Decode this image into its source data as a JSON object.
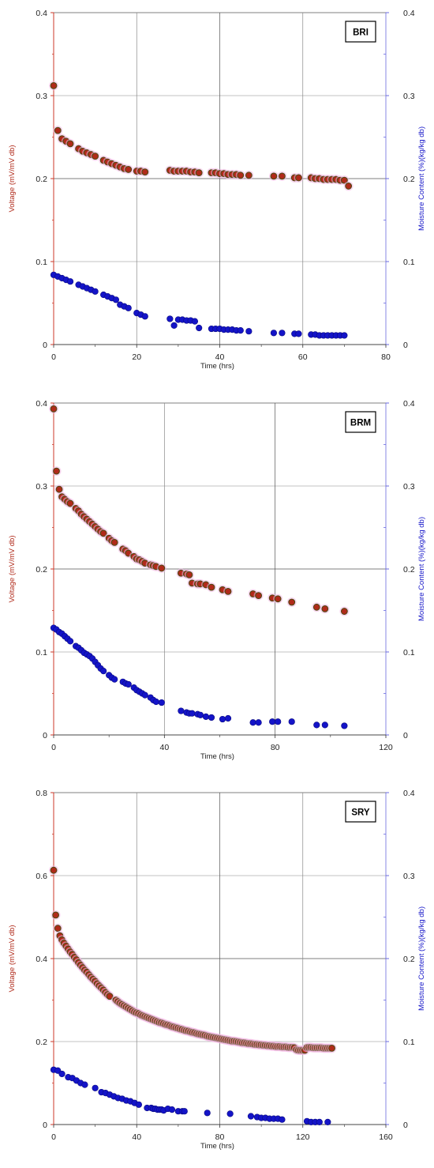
{
  "chart_data": [
    {
      "type": "scatter",
      "panel_label": "BRI",
      "xlabel": "Time (hrs)",
      "ylabel_left": "Voltage (mV/mV db)",
      "ylabel_right": "Moisture Content (%)(kg/kg db)",
      "xlim": [
        0,
        80
      ],
      "x_ticks": [
        "0",
        "20",
        "40",
        "60",
        "80"
      ],
      "ylim_left": [
        0,
        0.4
      ],
      "y_ticks_left": [
        "0",
        "0.1",
        "0.2",
        "0.3",
        "0.4"
      ],
      "ylim_right": [
        0,
        0.4
      ],
      "y_ticks_right": [
        "0",
        "0.1",
        "0.2",
        "0.3",
        "0.4"
      ],
      "grid": true,
      "series": [
        {
          "axis": "left",
          "color": "#b02a1a",
          "x": [
            0,
            1,
            2,
            3,
            4,
            6,
            7,
            8,
            9,
            10,
            12,
            13,
            14,
            15,
            16,
            17,
            18,
            20,
            21,
            22,
            28,
            29,
            30,
            31,
            32,
            33,
            34,
            35,
            38,
            39,
            40,
            41,
            42,
            43,
            44,
            45,
            47,
            53,
            55,
            58,
            59,
            62,
            63,
            64,
            65,
            66,
            67,
            68,
            69,
            70,
            71
          ],
          "y": [
            0.312,
            0.258,
            0.248,
            0.245,
            0.242,
            0.236,
            0.233,
            0.231,
            0.229,
            0.227,
            0.222,
            0.22,
            0.218,
            0.216,
            0.214,
            0.212,
            0.211,
            0.209,
            0.209,
            0.208,
            0.21,
            0.209,
            0.209,
            0.209,
            0.209,
            0.208,
            0.208,
            0.207,
            0.207,
            0.207,
            0.206,
            0.206,
            0.205,
            0.205,
            0.205,
            0.204,
            0.204,
            0.203,
            0.203,
            0.201,
            0.201,
            0.201,
            0.2,
            0.2,
            0.199,
            0.199,
            0.199,
            0.199,
            0.198,
            0.198,
            0.191
          ]
        },
        {
          "axis": "right",
          "color": "#1414c8",
          "x": [
            0,
            1,
            2,
            3,
            4,
            6,
            7,
            8,
            9,
            10,
            12,
            13,
            14,
            15,
            16,
            17,
            18,
            20,
            21,
            22,
            28,
            29,
            30,
            31,
            32,
            33,
            34,
            35,
            38,
            39,
            40,
            41,
            42,
            43,
            44,
            45,
            47,
            53,
            55,
            58,
            59,
            62,
            63,
            64,
            65,
            66,
            67,
            68,
            69,
            70
          ],
          "y": [
            0.084,
            0.082,
            0.08,
            0.078,
            0.076,
            0.072,
            0.07,
            0.068,
            0.066,
            0.064,
            0.06,
            0.058,
            0.056,
            0.054,
            0.048,
            0.046,
            0.044,
            0.038,
            0.036,
            0.034,
            0.031,
            0.023,
            0.03,
            0.03,
            0.029,
            0.029,
            0.028,
            0.02,
            0.019,
            0.019,
            0.019,
            0.018,
            0.018,
            0.018,
            0.017,
            0.017,
            0.016,
            0.014,
            0.014,
            0.013,
            0.013,
            0.012,
            0.012,
            0.011,
            0.011,
            0.011,
            0.011,
            0.011,
            0.011,
            0.011
          ]
        }
      ]
    },
    {
      "type": "scatter",
      "panel_label": "BRM",
      "xlabel": "Time (hrs)",
      "ylabel_left": "Voltage (mV/mV db)",
      "ylabel_right": "Moisture Content (%)(kg/kg db)",
      "xlim": [
        0,
        120
      ],
      "x_ticks": [
        "0",
        "40",
        "80",
        "120"
      ],
      "ylim_left": [
        0,
        0.4
      ],
      "y_ticks_left": [
        "0",
        "0.1",
        "0.2",
        "0.3",
        "0.4"
      ],
      "ylim_right": [
        0,
        0.4
      ],
      "y_ticks_right": [
        "0",
        "0.1",
        "0.2",
        "0.3",
        "0.4"
      ],
      "grid": true,
      "series": [
        {
          "axis": "left",
          "color": "#b02a1a",
          "x": [
            0,
            1,
            2,
            3,
            4,
            5,
            6,
            8,
            9,
            10,
            11,
            12,
            13,
            14,
            15,
            16,
            17,
            18,
            20,
            21,
            22,
            25,
            26,
            27,
            29,
            30,
            31,
            32,
            33,
            35,
            36,
            37,
            39,
            46,
            48,
            49,
            50,
            52,
            53,
            55,
            57,
            61,
            63,
            72,
            74,
            79,
            81,
            86,
            95,
            98,
            105
          ],
          "y": [
            0.393,
            0.318,
            0.296,
            0.287,
            0.284,
            0.281,
            0.279,
            0.273,
            0.27,
            0.266,
            0.263,
            0.26,
            0.257,
            0.254,
            0.251,
            0.248,
            0.245,
            0.243,
            0.237,
            0.234,
            0.232,
            0.224,
            0.222,
            0.219,
            0.215,
            0.212,
            0.211,
            0.209,
            0.207,
            0.205,
            0.204,
            0.203,
            0.201,
            0.195,
            0.194,
            0.193,
            0.183,
            0.182,
            0.182,
            0.181,
            0.178,
            0.175,
            0.173,
            0.17,
            0.168,
            0.165,
            0.164,
            0.16,
            0.154,
            0.152,
            0.149
          ]
        },
        {
          "axis": "right",
          "color": "#1414c8",
          "x": [
            0,
            1,
            2,
            3,
            4,
            5,
            6,
            8,
            9,
            10,
            11,
            12,
            13,
            14,
            15,
            16,
            17,
            18,
            20,
            21,
            22,
            25,
            26,
            27,
            29,
            30,
            31,
            32,
            33,
            35,
            36,
            37,
            39,
            46,
            48,
            49,
            50,
            52,
            53,
            55,
            57,
            61,
            63,
            72,
            74,
            79,
            81,
            86,
            95,
            98,
            105
          ],
          "y": [
            0.129,
            0.127,
            0.124,
            0.122,
            0.119,
            0.116,
            0.113,
            0.107,
            0.105,
            0.102,
            0.099,
            0.097,
            0.095,
            0.092,
            0.088,
            0.084,
            0.08,
            0.077,
            0.072,
            0.069,
            0.067,
            0.064,
            0.062,
            0.061,
            0.057,
            0.054,
            0.052,
            0.05,
            0.048,
            0.045,
            0.042,
            0.04,
            0.039,
            0.029,
            0.027,
            0.026,
            0.026,
            0.025,
            0.024,
            0.022,
            0.021,
            0.019,
            0.02,
            0.015,
            0.015,
            0.016,
            0.016,
            0.016,
            0.012,
            0.012,
            0.011
          ]
        }
      ]
    },
    {
      "type": "scatter",
      "panel_label": "SRY",
      "xlabel": "Time (hrs)",
      "ylabel_left": "Voltage (mV/mV db)",
      "ylabel_right": "Moisture Content (%)(kg/kg db)",
      "xlim": [
        0,
        160
      ],
      "x_ticks": [
        "0",
        "40",
        "80",
        "120",
        "160"
      ],
      "ylim_left": [
        0,
        0.8
      ],
      "y_ticks_left": [
        "0",
        "0.2",
        "0.4",
        "0.6",
        "0.8"
      ],
      "ylim_right": [
        0,
        0.4
      ],
      "y_ticks_right": [
        "0",
        "0.1",
        "0.2",
        "0.3",
        "0.4"
      ],
      "grid": true,
      "series": [
        {
          "axis": "left",
          "color": "#b02a1a",
          "x": [
            0,
            1,
            2,
            3,
            4,
            5,
            6,
            7,
            8,
            9,
            10,
            11,
            12,
            13,
            14,
            15,
            16,
            17,
            18,
            19,
            20,
            21,
            22,
            23,
            24,
            25,
            26,
            27,
            30,
            31,
            32,
            33,
            34,
            35,
            36,
            37,
            38,
            39,
            40,
            41,
            42,
            43,
            44,
            45,
            46,
            47,
            48,
            49,
            50,
            51,
            52,
            53,
            54,
            55,
            56,
            57,
            58,
            59,
            60,
            61,
            62,
            63,
            64,
            65,
            66,
            67,
            68,
            69,
            70,
            71,
            72,
            73,
            74,
            75,
            76,
            77,
            78,
            79,
            80,
            81,
            82,
            83,
            84,
            85,
            86,
            87,
            88,
            89,
            90,
            91,
            92,
            93,
            94,
            95,
            96,
            97,
            98,
            99,
            100,
            101,
            102,
            103,
            104,
            105,
            106,
            107,
            108,
            109,
            110,
            111,
            112,
            113,
            114,
            115,
            116,
            117,
            118,
            119,
            120,
            121,
            122,
            123,
            124,
            125,
            126,
            127,
            128,
            129,
            130,
            131,
            132,
            133,
            134
          ],
          "y": [
            0.613,
            0.505,
            0.473,
            0.455,
            0.445,
            0.437,
            0.43,
            0.423,
            0.416,
            0.41,
            0.403,
            0.397,
            0.39,
            0.384,
            0.378,
            0.372,
            0.367,
            0.361,
            0.355,
            0.35,
            0.345,
            0.339,
            0.334,
            0.329,
            0.324,
            0.318,
            0.313,
            0.309,
            0.3,
            0.296,
            0.292,
            0.289,
            0.286,
            0.283,
            0.28,
            0.277,
            0.274,
            0.271,
            0.269,
            0.267,
            0.264,
            0.262,
            0.26,
            0.258,
            0.256,
            0.254,
            0.252,
            0.25,
            0.248,
            0.246,
            0.245,
            0.243,
            0.241,
            0.24,
            0.238,
            0.236,
            0.235,
            0.233,
            0.232,
            0.23,
            0.229,
            0.227,
            0.226,
            0.225,
            0.223,
            0.222,
            0.221,
            0.219,
            0.218,
            0.217,
            0.216,
            0.215,
            0.213,
            0.212,
            0.211,
            0.21,
            0.209,
            0.208,
            0.207,
            0.206,
            0.205,
            0.204,
            0.203,
            0.202,
            0.201,
            0.201,
            0.2,
            0.199,
            0.198,
            0.197,
            0.197,
            0.196,
            0.195,
            0.195,
            0.194,
            0.193,
            0.193,
            0.192,
            0.192,
            0.191,
            0.191,
            0.19,
            0.19,
            0.189,
            0.189,
            0.188,
            0.188,
            0.188,
            0.187,
            0.187,
            0.187,
            0.186,
            0.186,
            0.186,
            0.185,
            0.18,
            0.179,
            0.179,
            0.179,
            0.179,
            0.186,
            0.186,
            0.186,
            0.185,
            0.185,
            0.185,
            0.185,
            0.185,
            0.184,
            0.184,
            0.184,
            0.184,
            0.184
          ],
          "y_axis_note": ""
        },
        {
          "axis": "right",
          "color": "#1414c8",
          "x": [
            0,
            2,
            4,
            7,
            9,
            11,
            13,
            15,
            20,
            23,
            25,
            27,
            29,
            31,
            33,
            35,
            37,
            39,
            41,
            45,
            47,
            48,
            49,
            50,
            51,
            52,
            53,
            55,
            57,
            60,
            62,
            63,
            74,
            85,
            95,
            98,
            100,
            102,
            104,
            106,
            108,
            110,
            122,
            124,
            126,
            128,
            132
          ],
          "y": [
            0.066,
            0.065,
            0.061,
            0.057,
            0.056,
            0.053,
            0.05,
            0.048,
            0.044,
            0.039,
            0.038,
            0.036,
            0.034,
            0.032,
            0.031,
            0.029,
            0.028,
            0.026,
            0.024,
            0.02,
            0.02,
            0.019,
            0.019,
            0.018,
            0.018,
            0.018,
            0.017,
            0.019,
            0.018,
            0.016,
            0.016,
            0.016,
            0.014,
            0.013,
            0.01,
            0.009,
            0.008,
            0.008,
            0.007,
            0.007,
            0.007,
            0.006,
            0.004,
            0.003,
            0.003,
            0.003,
            0.003
          ]
        }
      ]
    }
  ]
}
